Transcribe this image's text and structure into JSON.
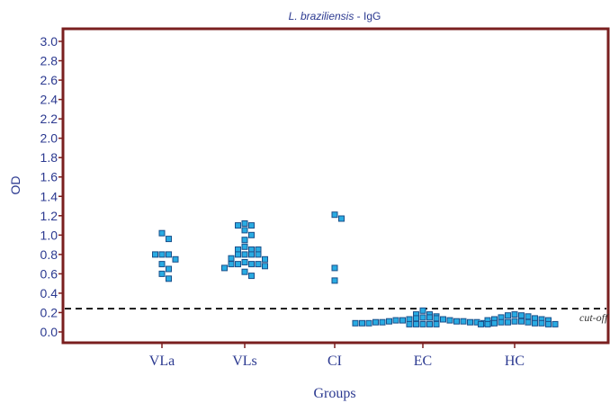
{
  "chart_data": {
    "type": "scatter",
    "title_italic": "L. braziliensis",
    "title_rest": " - IgG",
    "xlabel": "Groups",
    "ylabel": "OD",
    "ylim": [
      -0.1,
      3.1
    ],
    "yticks": [
      0.0,
      0.2,
      0.4,
      0.6,
      0.8,
      1.0,
      1.2,
      1.4,
      1.6,
      1.8,
      2.0,
      2.2,
      2.4,
      2.6,
      2.8,
      3.0
    ],
    "ytick_labels": [
      "0.0",
      "0.2",
      "0.4",
      "0.6",
      "0.8",
      "1.0",
      "1.2",
      "1.4",
      "1.6",
      "1.8",
      "2.0",
      "2.2",
      "2.4",
      "2.6",
      "2.8",
      "3.0"
    ],
    "categories": [
      "VLa",
      "VLs",
      "CI",
      "EC",
      "HC"
    ],
    "cutoff": {
      "value": 0.24,
      "label": "cut-off"
    },
    "groups": [
      {
        "name": "VLa",
        "values": [
          1.02,
          0.96,
          0.8,
          0.8,
          0.8,
          0.75,
          0.7,
          0.65,
          0.6,
          0.55
        ]
      },
      {
        "name": "VLs",
        "values": [
          1.12,
          1.1,
          1.1,
          1.05,
          1.0,
          0.95,
          0.88,
          0.85,
          0.85,
          0.85,
          0.8,
          0.8,
          0.8,
          0.8,
          0.76,
          0.75,
          0.72,
          0.7,
          0.7,
          0.7,
          0.7,
          0.68,
          0.66,
          0.62,
          0.58
        ]
      },
      {
        "name": "CI",
        "values": [
          1.21,
          1.17,
          0.66,
          0.53
        ]
      },
      {
        "name": "EC",
        "values": [
          0.22,
          0.18,
          0.18,
          0.16,
          0.15,
          0.15,
          0.14,
          0.14,
          0.13,
          0.13,
          0.12,
          0.12,
          0.12,
          0.11,
          0.11,
          0.11,
          0.1,
          0.1,
          0.1,
          0.1,
          0.09,
          0.09,
          0.09,
          0.09,
          0.09,
          0.08,
          0.08,
          0.08,
          0.08,
          0.08
        ]
      },
      {
        "name": "HC",
        "values": [
          0.18,
          0.17,
          0.17,
          0.16,
          0.15,
          0.14,
          0.13,
          0.13,
          0.12,
          0.12,
          0.11,
          0.11,
          0.1,
          0.1,
          0.1,
          0.09,
          0.09,
          0.09,
          0.08,
          0.08,
          0.08,
          0.08
        ]
      }
    ],
    "grid": false,
    "legend": "none",
    "colors": {
      "frame": "#7a1f1f",
      "marker_fill": "#29abe2",
      "marker_edge": "#1a4f8a",
      "text": "#2b3990",
      "cutoff_line": "#000000"
    }
  }
}
